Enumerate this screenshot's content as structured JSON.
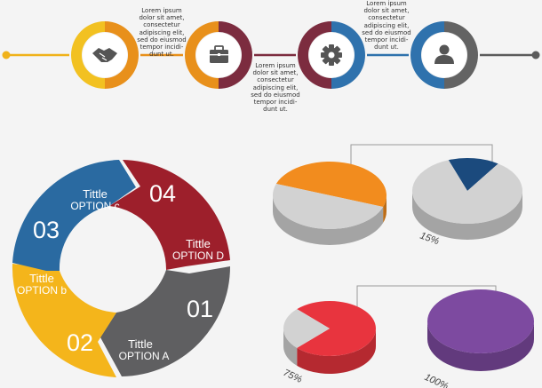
{
  "timeline": {
    "colors": {
      "line_left": "#f0b21a",
      "line_right": "#5b5b5b"
    },
    "steps": [
      {
        "icon": "handshake-icon",
        "color_a": "#f2c121",
        "color_b": "#e8901b"
      },
      {
        "icon": "briefcase-icon",
        "color_a": "#e8901b",
        "color_b": "#7c2c3f"
      },
      {
        "icon": "gear-icon",
        "color_a": "#7c2c3f",
        "color_b": "#2f72ad"
      },
      {
        "icon": "user-icon",
        "color_a": "#2f72ad",
        "color_b": "#636363"
      }
    ],
    "notes": [
      "Lorem ipsum\ndolor sit amet,\nconsectetur\nadipiscing elit,\nsed do eiusmod\ntempor incidi-\ndunt ut.",
      "Lorem ipsum\ndolor sit amet,\nconsectetur\nadipiscing elit,\nsed do eiusmod\ntempor incidi-\ndunt ut.",
      "Lorem ipsum\ndolor sit amet,\nconsectetur\nadipiscing elit,\nsed do eiusmod\ntempor incidi-\ndunt ut."
    ]
  },
  "cycle": {
    "segments": [
      {
        "number": "04",
        "title": "Tittle",
        "option": "OPTION D",
        "color": "#9d1f2b"
      },
      {
        "number": "01",
        "title": "Tittle",
        "option": "OPTION A",
        "color": "#5f5f61"
      },
      {
        "number": "02",
        "title": "Tittle",
        "option": "OPTION b",
        "color": "#f4b51b"
      },
      {
        "number": "03",
        "title": "Tittle",
        "option": "OPTION c",
        "color": "#2a6aa1"
      }
    ]
  },
  "pies": [
    {
      "label": "",
      "fraction": 0.5,
      "color": "#f28c1e",
      "rest_color": "#d2d2d2"
    },
    {
      "label": "15%",
      "fraction": 0.15,
      "color": "#1b4a7d",
      "rest_color": "#d2d2d2"
    },
    {
      "label": "75%",
      "fraction": 0.75,
      "color": "#e8343e",
      "rest_color": "#d2d2d2"
    },
    {
      "label": "100%",
      "fraction": 1.0,
      "color": "#7d4aa0",
      "rest_color": "#d2d2d2"
    }
  ]
}
